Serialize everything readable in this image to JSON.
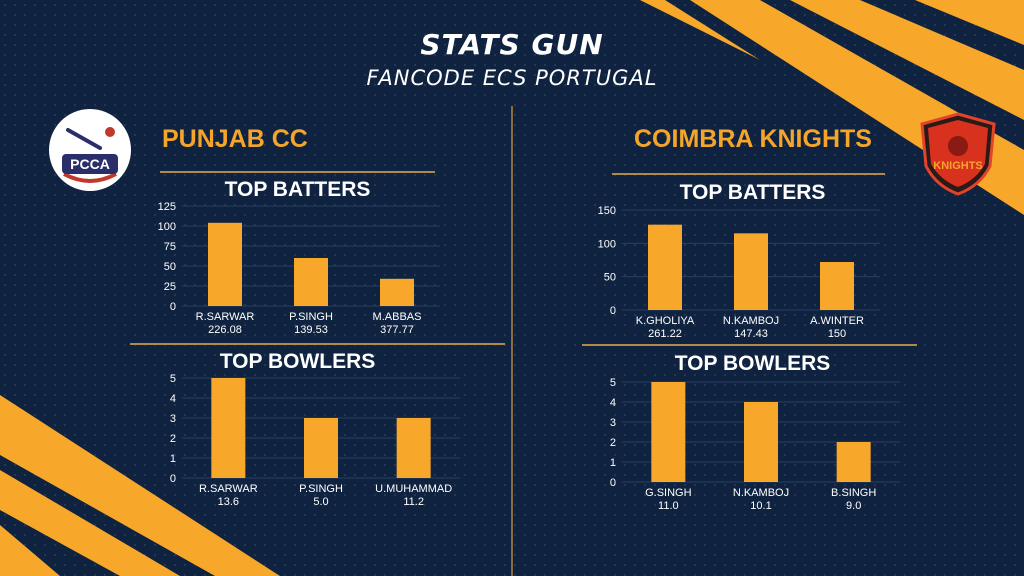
{
  "header": {
    "title": "STATS GUN",
    "subtitle": "FANCODE ECS PORTUGAL"
  },
  "colors": {
    "background": "#0f2340",
    "accent": "#f5a52a",
    "bar": "#f7a72a",
    "grid": "#2a3f60"
  },
  "teams": [
    {
      "name": "PUNJAB CC",
      "logo_text": "PCCA"
    },
    {
      "name": "COIMBRA KNIGHTS",
      "logo_text": "KNIGHTS"
    }
  ],
  "chart_data": [
    {
      "type": "bar",
      "title": "TOP BATTERS",
      "team": "PUNJAB CC",
      "categories": [
        "R.SARWAR",
        "P.SINGH",
        "M.ABBAS"
      ],
      "sublabels": [
        "226.08",
        "139.53",
        "377.77"
      ],
      "values": [
        104,
        60,
        34
      ],
      "ylim": [
        0,
        125
      ],
      "yticks": [
        0,
        25,
        50,
        75,
        100,
        125
      ],
      "grid": true
    },
    {
      "type": "bar",
      "title": "TOP BOWLERS",
      "team": "PUNJAB CC",
      "categories": [
        "R.SARWAR",
        "P.SINGH",
        "U.MUHAMMAD"
      ],
      "sublabels": [
        "13.6",
        "5.0",
        "11.2"
      ],
      "values": [
        5,
        3,
        3
      ],
      "ylim": [
        0,
        5
      ],
      "yticks": [
        0,
        1,
        2,
        3,
        4,
        5
      ],
      "grid": true
    },
    {
      "type": "bar",
      "title": "TOP BATTERS",
      "team": "COIMBRA KNIGHTS",
      "categories": [
        "K.GHOLIYA",
        "N.KAMBOJ",
        "A.WINTER"
      ],
      "sublabels": [
        "261.22",
        "147.43",
        "150"
      ],
      "values": [
        128,
        115,
        72
      ],
      "ylim": [
        0,
        150
      ],
      "yticks": [
        0,
        50,
        100,
        150
      ],
      "grid": true
    },
    {
      "type": "bar",
      "title": "TOP BOWLERS",
      "team": "COIMBRA KNIGHTS",
      "categories": [
        "G.SINGH",
        "N.KAMBOJ",
        "B.SINGH"
      ],
      "sublabels": [
        "11.0",
        "10.1",
        "9.0"
      ],
      "values": [
        5,
        4,
        2
      ],
      "ylim": [
        0,
        5
      ],
      "yticks": [
        0,
        1,
        2,
        3,
        4,
        5
      ],
      "grid": true
    }
  ]
}
